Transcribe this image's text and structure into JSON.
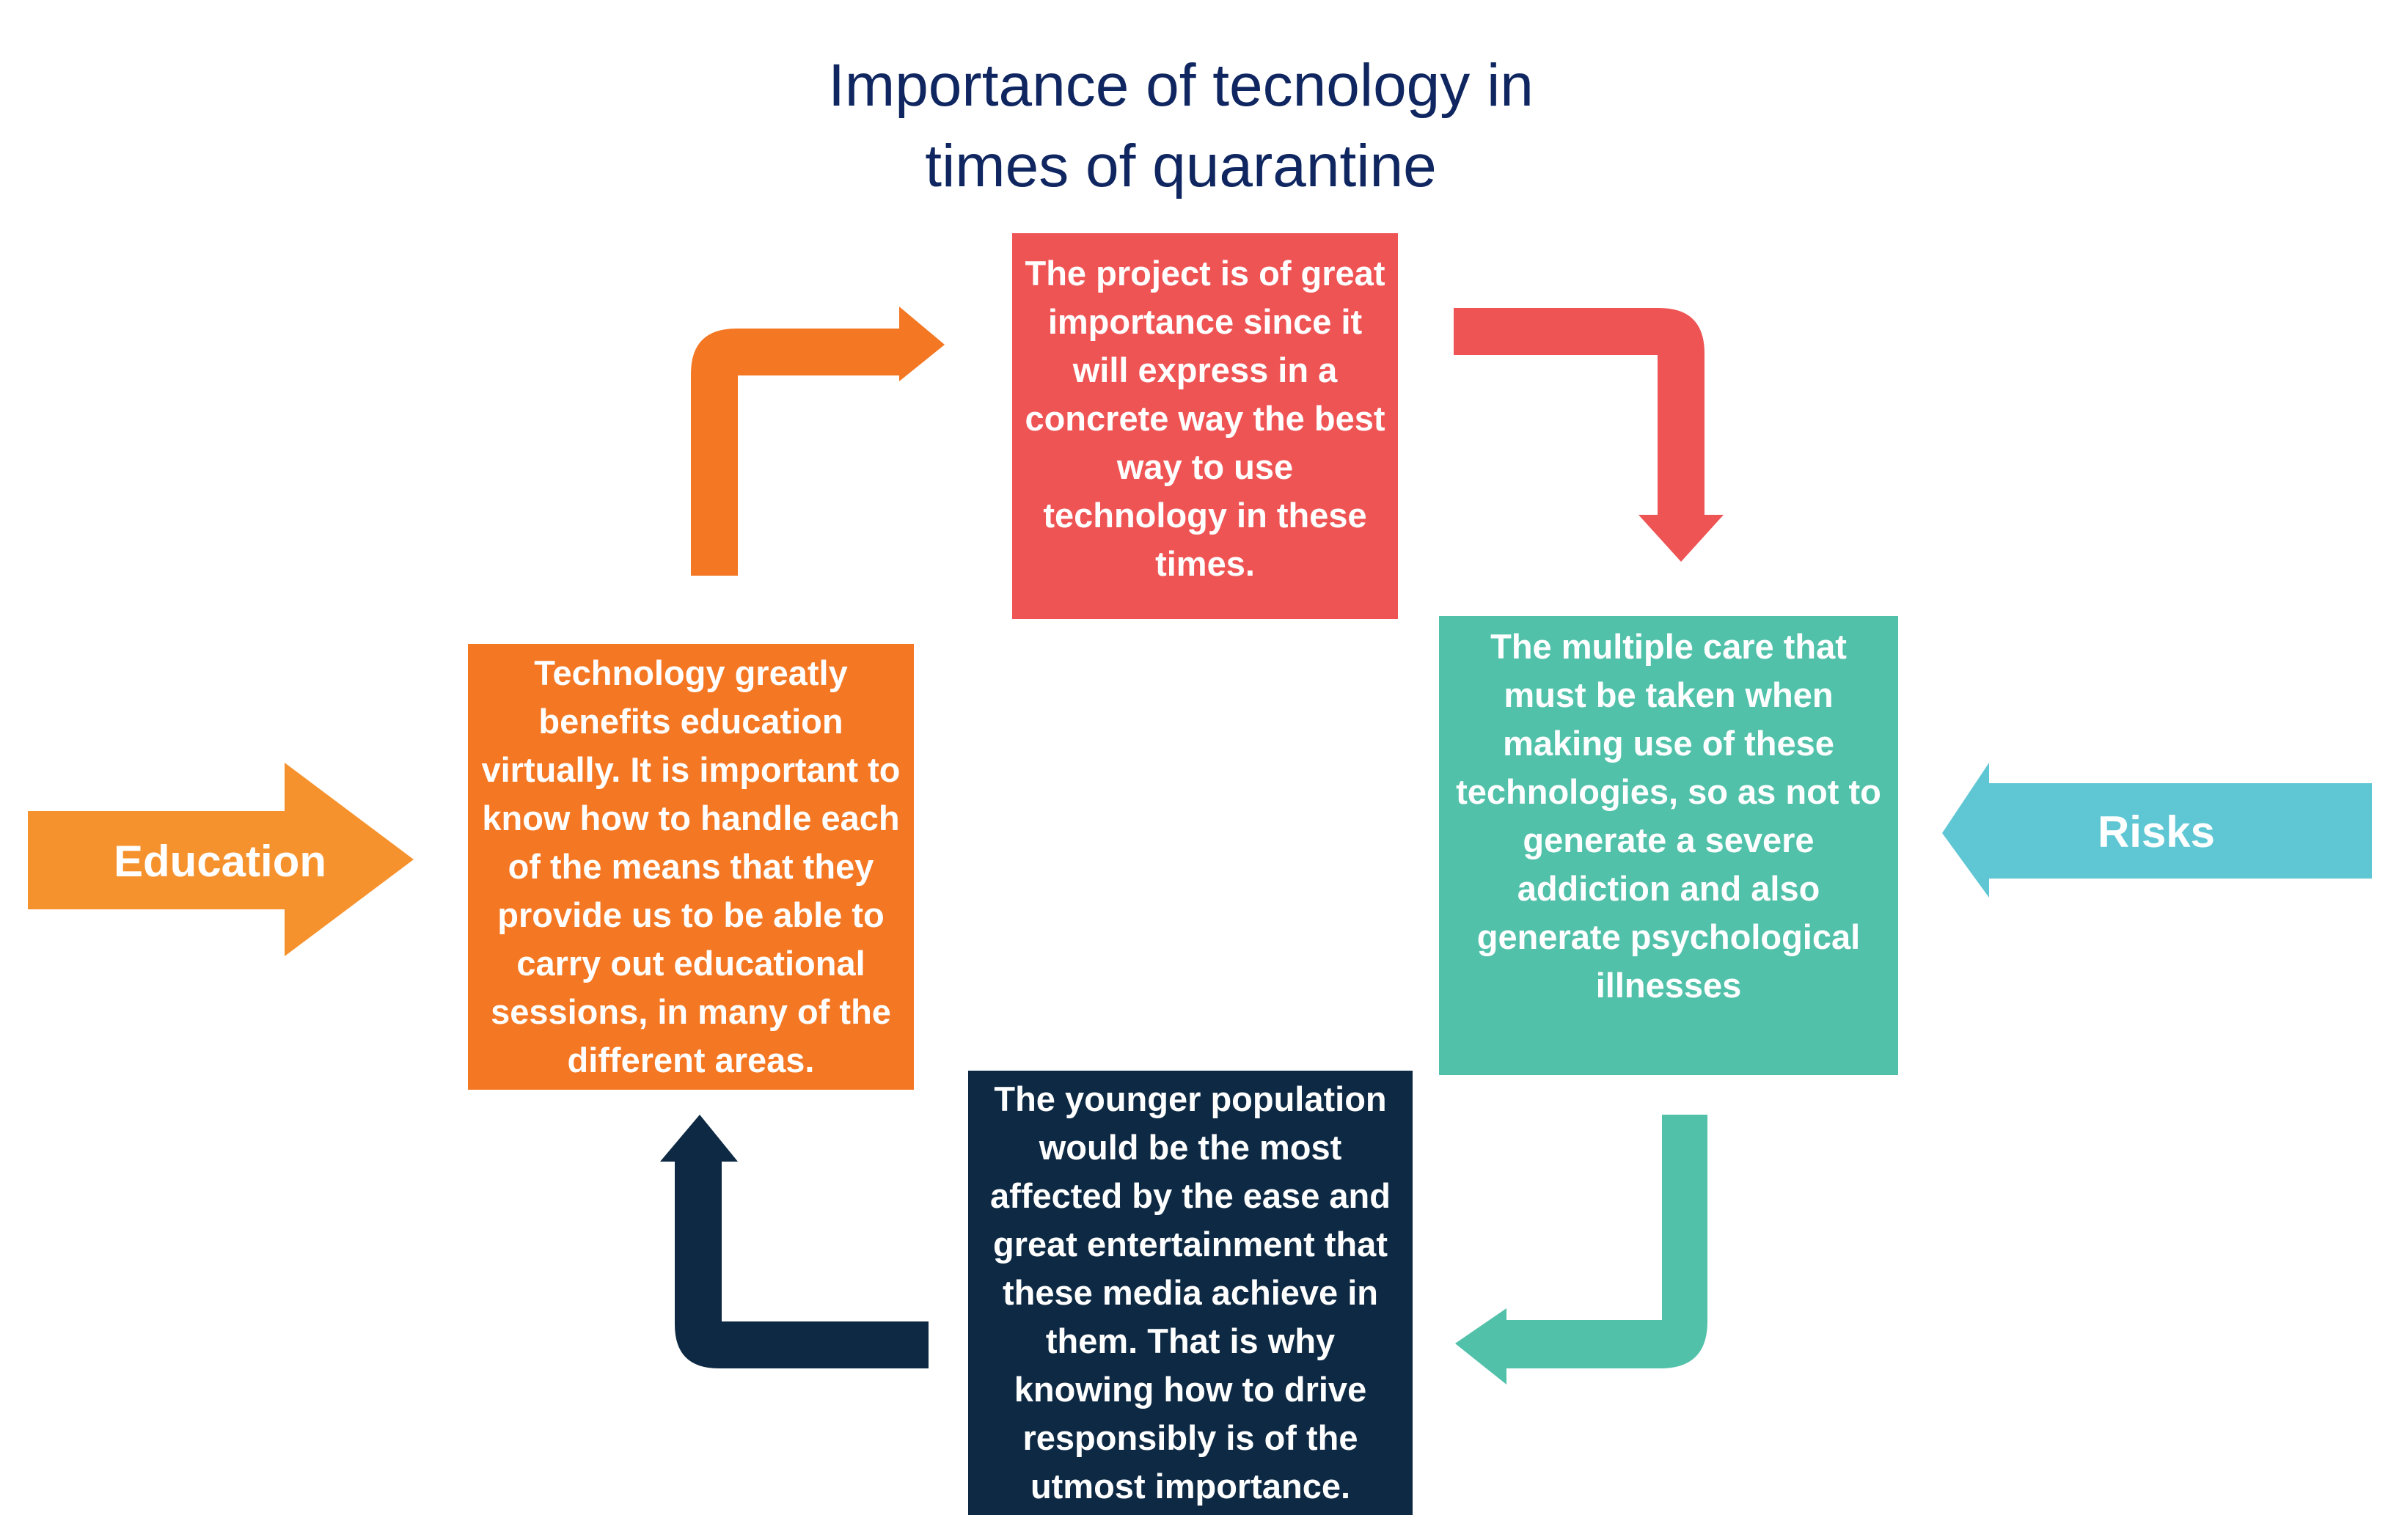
{
  "title": {
    "line1": "Importance of tecnology in",
    "line2": "times of quarantine"
  },
  "boxes": {
    "top": {
      "text": "The project is of great importance since it will express in a concrete way the best way to use technology in these times.",
      "color": "#ef5455"
    },
    "left": {
      "text": "Technology greatly benefits education virtually. It is important to know how to handle each of the means that they provide us to be able to carry out educational sessions, in many of the different areas.",
      "color": "#f47723"
    },
    "right": {
      "text": "The multiple care that must be taken when making use of these technologies, so as not to generate a severe addiction and also generate psychological illnesses",
      "color": "#52c1aa"
    },
    "bottom": {
      "text": "The younger population would be the most affected by the ease and great entertainment that these media achieve in them. That is why knowing how to drive responsibly is of the utmost importance.",
      "color": "#0d2943"
    }
  },
  "side_arrows": {
    "education": {
      "label": "Education",
      "color": "#f6922d"
    },
    "risks": {
      "label": "Risks",
      "color": "#5fc7d4"
    }
  },
  "cycle_arrows": {
    "orange_color": "#f47723",
    "red_color": "#ef5455",
    "teal_color": "#52c1aa",
    "navy_color": "#0d2943"
  }
}
